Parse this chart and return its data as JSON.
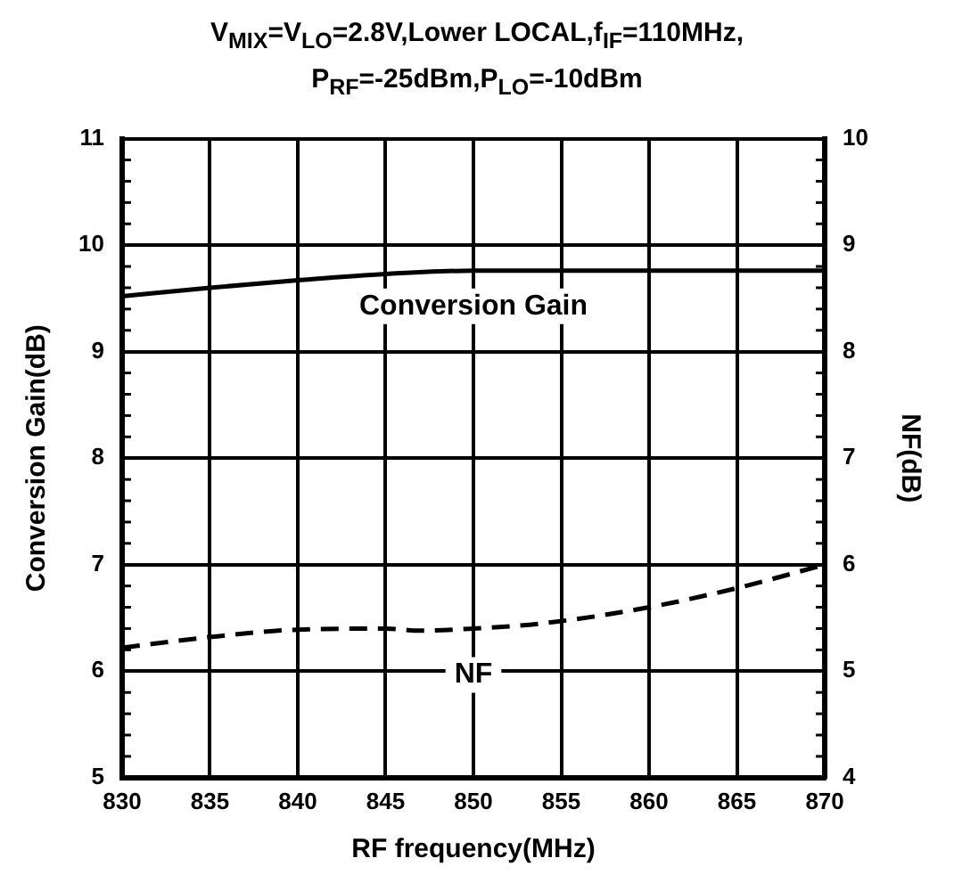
{
  "chart_data": {
    "type": "line",
    "title": "V$_{MIX}$=V$_{LO}$=2.8V,Lower LOCAL,f$_{IF}$=110MHz,",
    "subtitle": "P$_{RF}$=-25dBm,P$_{LO}$=-10dBm",
    "xlabel": "RF frequency(MHz)",
    "ylabel": "Conversion Gain(dB)",
    "y2label": "NF(dB)",
    "xlim": [
      830,
      870
    ],
    "xticks": [
      830,
      835,
      840,
      845,
      850,
      855,
      860,
      865,
      870
    ],
    "ylim": [
      5,
      11
    ],
    "yticks": [
      5,
      6,
      7,
      8,
      9,
      10,
      11
    ],
    "y2lim": [
      4,
      10
    ],
    "y2ticks": [
      4,
      5,
      6,
      7,
      8,
      9,
      10
    ],
    "grid": true,
    "legend": false,
    "marker": "none",
    "series": [
      {
        "name": "Conversion Gain",
        "color": "#000000",
        "line_style": "solid",
        "x": [
          830,
          835,
          840,
          845,
          850,
          855,
          860,
          865,
          870
        ],
        "values": [
          9.52,
          9.6,
          9.67,
          9.73,
          9.76,
          9.76,
          9.76,
          9.76,
          9.76
        ]
      },
      {
        "name": "NF",
        "color": "#000000",
        "line_style": "dashed",
        "axis": "y2",
        "x": [
          830,
          835,
          840,
          845,
          847,
          850,
          854,
          860,
          865,
          870
        ],
        "values": [
          5.22,
          5.32,
          5.39,
          5.4,
          5.38,
          5.4,
          5.45,
          5.6,
          5.78,
          6.0
        ]
      }
    ]
  }
}
